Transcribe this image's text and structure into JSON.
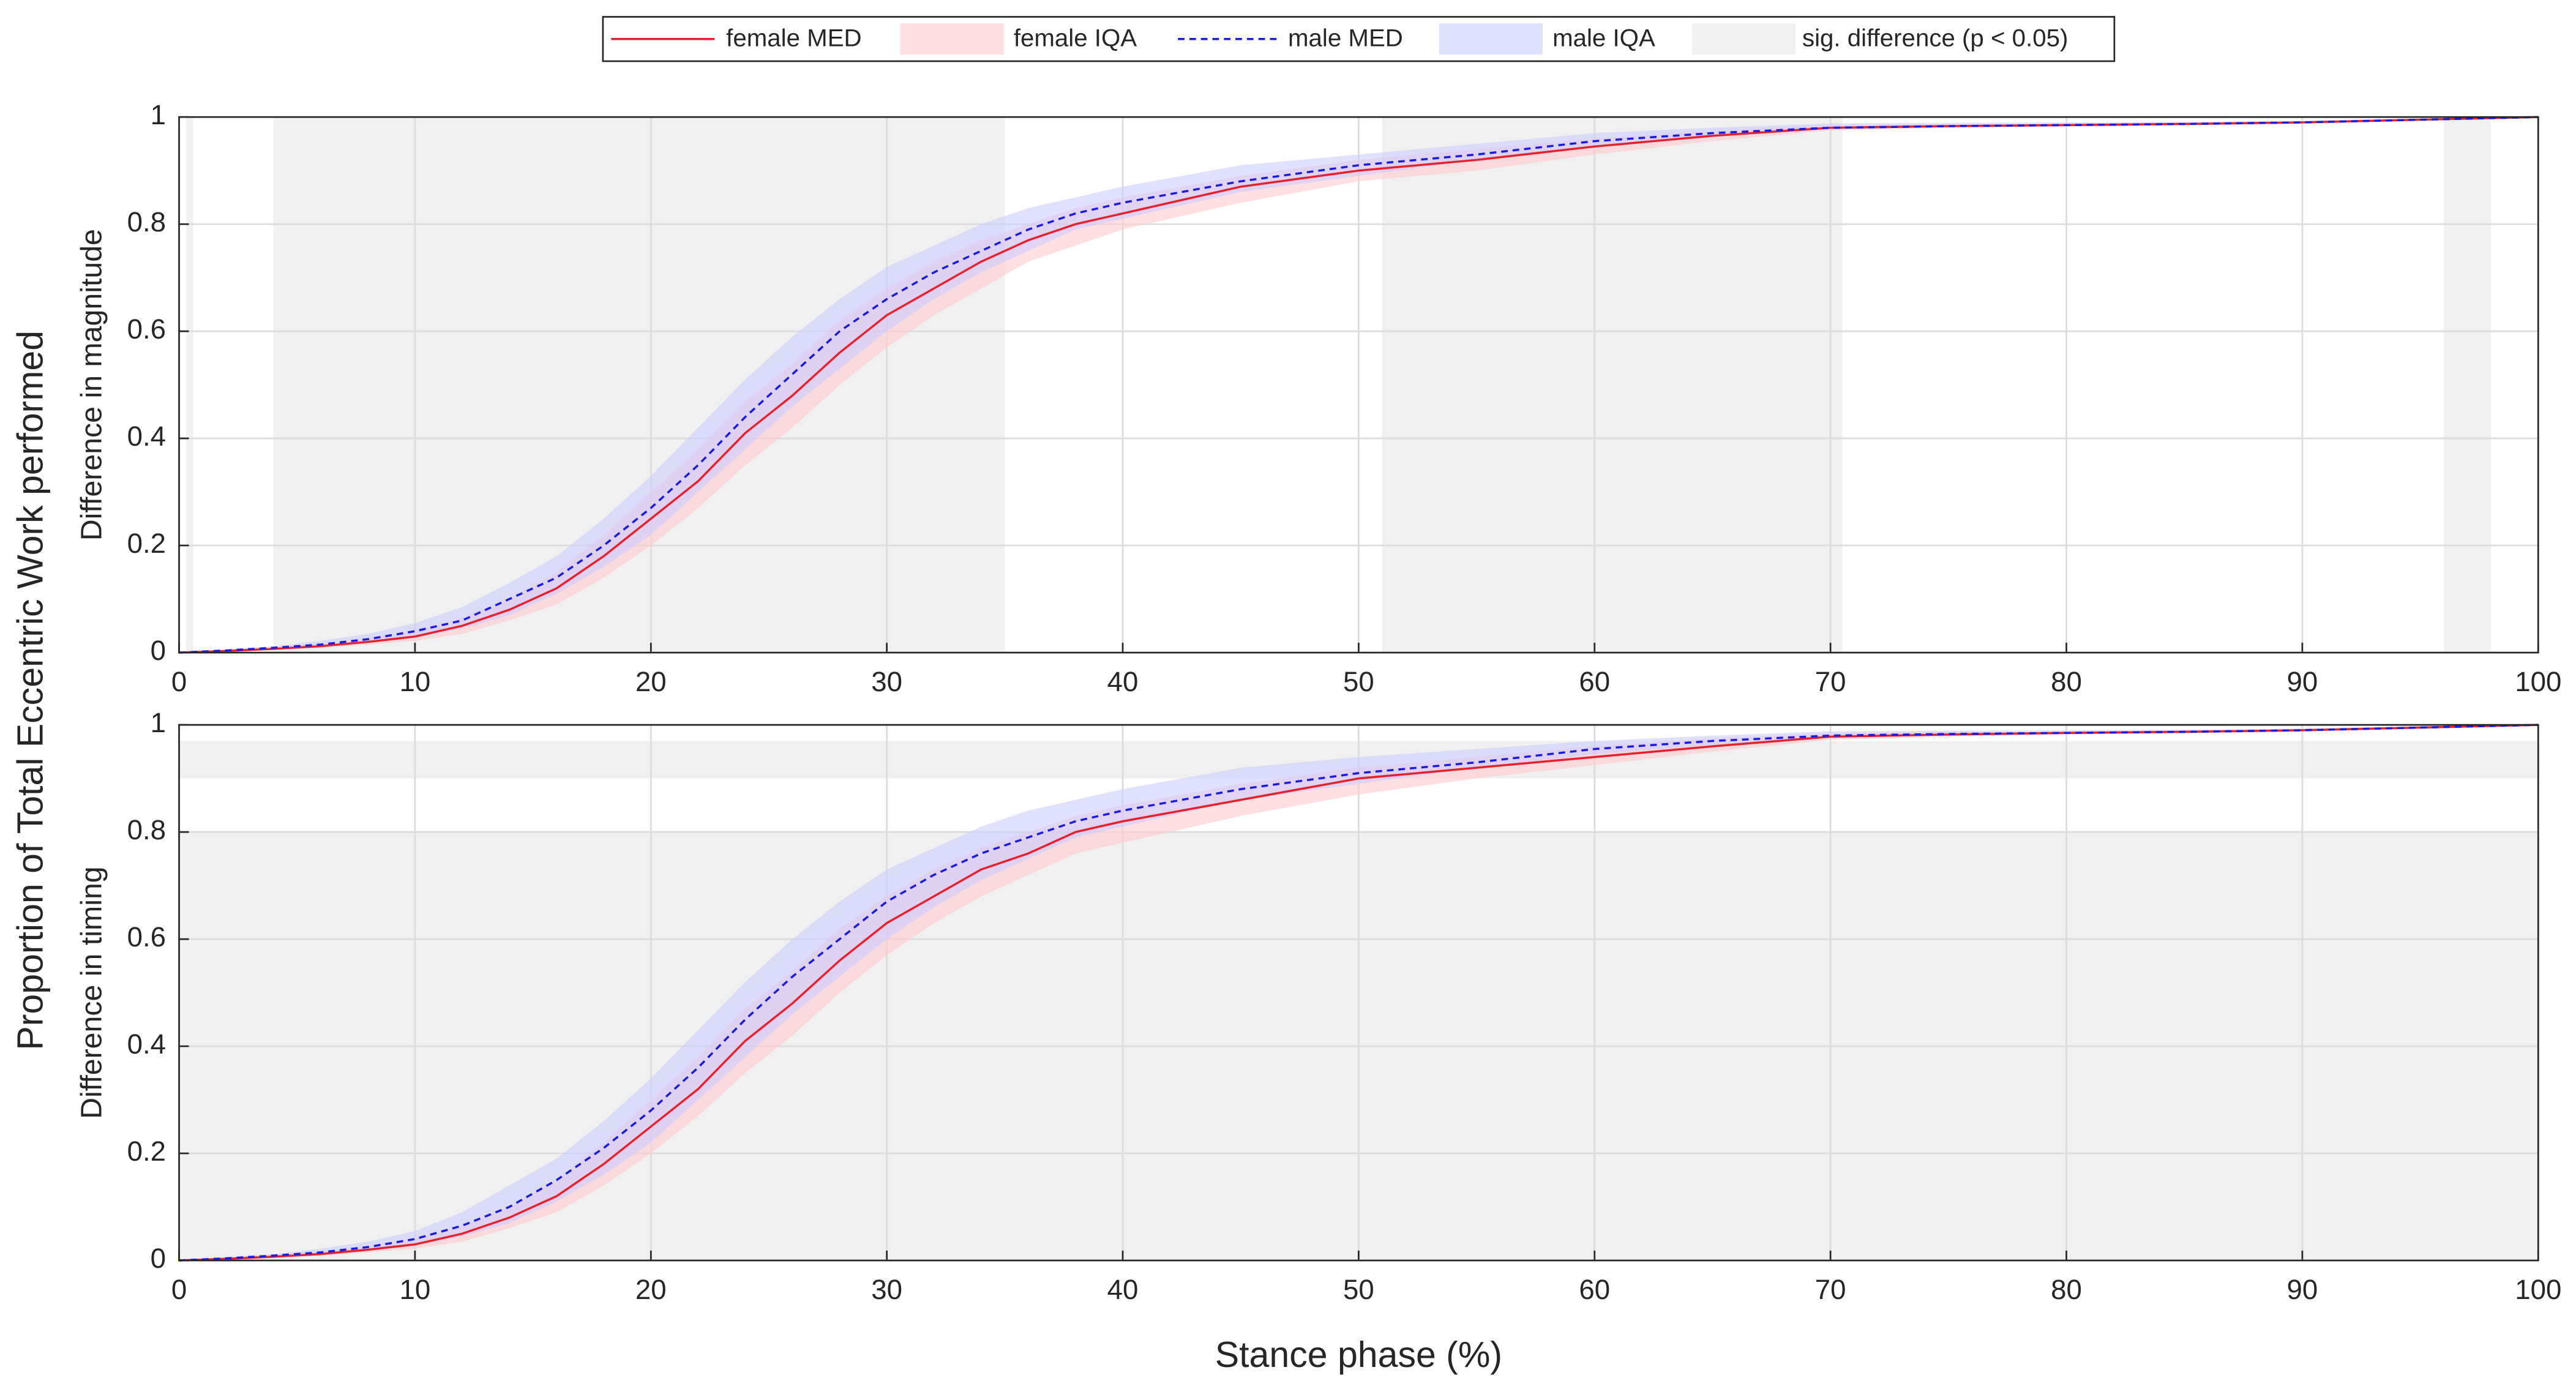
{
  "xlabel": "Stance phase (%)",
  "ylabel": "Proportion of Total Eccentric Work performed",
  "chart_data": [
    {
      "type": "line",
      "ylabel": "Difference in magnitude",
      "x": [
        0,
        2,
        4,
        6,
        8,
        10,
        12,
        14,
        16,
        18,
        20,
        22,
        24,
        26,
        28,
        30,
        32,
        34,
        36,
        38,
        40,
        45,
        50,
        55,
        60,
        65,
        70,
        75,
        80,
        85,
        90,
        95,
        100
      ],
      "series": [
        {
          "name": "female MED",
          "kind": "line",
          "color": "#e8202a",
          "dash": false,
          "values": [
            0,
            0.003,
            0.007,
            0.012,
            0.02,
            0.03,
            0.05,
            0.08,
            0.12,
            0.18,
            0.25,
            0.32,
            0.41,
            0.48,
            0.56,
            0.63,
            0.68,
            0.73,
            0.77,
            0.8,
            0.82,
            0.87,
            0.9,
            0.92,
            0.945,
            0.965,
            0.98,
            0.983,
            0.985,
            0.987,
            0.99,
            0.995,
            1
          ]
        },
        {
          "name": "female IQA",
          "kind": "band",
          "color": "#ffc9cf",
          "lower": [
            0,
            0.002,
            0.005,
            0.009,
            0.015,
            0.022,
            0.035,
            0.06,
            0.09,
            0.14,
            0.2,
            0.27,
            0.35,
            0.42,
            0.5,
            0.57,
            0.63,
            0.68,
            0.73,
            0.76,
            0.79,
            0.84,
            0.88,
            0.9,
            0.93,
            0.955,
            0.975,
            0.98,
            0.982,
            0.985,
            0.988,
            0.994,
            1
          ],
          "upper": [
            0,
            0.004,
            0.009,
            0.016,
            0.026,
            0.04,
            0.065,
            0.1,
            0.15,
            0.22,
            0.3,
            0.38,
            0.47,
            0.54,
            0.62,
            0.68,
            0.73,
            0.77,
            0.8,
            0.83,
            0.85,
            0.89,
            0.92,
            0.94,
            0.96,
            0.975,
            0.985,
            0.987,
            0.988,
            0.99,
            0.992,
            0.996,
            1
          ]
        },
        {
          "name": "male MED",
          "kind": "line",
          "color": "#1a1ae6",
          "dash": true,
          "values": [
            0,
            0.004,
            0.009,
            0.015,
            0.025,
            0.04,
            0.06,
            0.1,
            0.14,
            0.2,
            0.27,
            0.35,
            0.44,
            0.52,
            0.6,
            0.66,
            0.71,
            0.75,
            0.79,
            0.82,
            0.84,
            0.88,
            0.91,
            0.93,
            0.955,
            0.97,
            0.98,
            0.983,
            0.985,
            0.987,
            0.99,
            0.995,
            1
          ]
        },
        {
          "name": "male IQA",
          "kind": "band",
          "color": "#ccccff",
          "lower": [
            0,
            0.003,
            0.006,
            0.011,
            0.018,
            0.028,
            0.045,
            0.07,
            0.11,
            0.16,
            0.22,
            0.3,
            0.38,
            0.46,
            0.53,
            0.6,
            0.66,
            0.71,
            0.75,
            0.79,
            0.81,
            0.86,
            0.89,
            0.92,
            0.945,
            0.963,
            0.977,
            0.981,
            0.983,
            0.986,
            0.989,
            0.995,
            1
          ],
          "upper": [
            0,
            0.006,
            0.012,
            0.022,
            0.035,
            0.055,
            0.085,
            0.13,
            0.18,
            0.25,
            0.33,
            0.42,
            0.51,
            0.59,
            0.66,
            0.72,
            0.76,
            0.8,
            0.83,
            0.85,
            0.87,
            0.91,
            0.93,
            0.95,
            0.97,
            0.98,
            0.988,
            0.989,
            0.99,
            0.991,
            0.993,
            0.997,
            1
          ]
        }
      ],
      "sig_label": "sig. difference (p < 0.05)",
      "sig_color": "#f0f0f0",
      "sig_regions": [
        {
          "x": [
            0.3,
            0.6
          ],
          "y": [
            0,
            1
          ]
        },
        {
          "x": [
            4,
            35
          ],
          "y": [
            0,
            1
          ]
        },
        {
          "x": [
            51,
            70.5
          ],
          "y": [
            0,
            1
          ]
        },
        {
          "x": [
            96,
            98
          ],
          "y": [
            0,
            1
          ]
        }
      ],
      "xlim": [
        0,
        100
      ],
      "ylim": [
        0,
        1
      ],
      "xticks": [
        0,
        10,
        20,
        30,
        40,
        50,
        60,
        70,
        80,
        90,
        100
      ],
      "yticks": [
        0,
        0.2,
        0.4,
        0.6,
        0.8,
        1
      ],
      "grid": true
    },
    {
      "type": "line",
      "ylabel": "Difference in timing",
      "x": [
        0,
        2,
        4,
        6,
        8,
        10,
        12,
        14,
        16,
        18,
        20,
        22,
        24,
        26,
        28,
        30,
        32,
        34,
        36,
        38,
        40,
        45,
        50,
        55,
        60,
        65,
        70,
        75,
        80,
        85,
        90,
        95,
        100
      ],
      "series": [
        {
          "kind": "line",
          "color": "#e8202a",
          "dash": false,
          "values": [
            0,
            0.003,
            0.007,
            0.012,
            0.02,
            0.03,
            0.05,
            0.08,
            0.12,
            0.18,
            0.25,
            0.32,
            0.41,
            0.48,
            0.56,
            0.63,
            0.68,
            0.73,
            0.76,
            0.8,
            0.82,
            0.86,
            0.9,
            0.92,
            0.94,
            0.96,
            0.978,
            0.982,
            0.985,
            0.987,
            0.99,
            0.995,
            1
          ]
        },
        {
          "kind": "band",
          "color": "#ffc9cf",
          "lower": [
            0,
            0.002,
            0.005,
            0.009,
            0.015,
            0.022,
            0.035,
            0.06,
            0.09,
            0.14,
            0.2,
            0.27,
            0.35,
            0.42,
            0.5,
            0.57,
            0.63,
            0.68,
            0.72,
            0.76,
            0.78,
            0.83,
            0.87,
            0.9,
            0.925,
            0.95,
            0.972,
            0.978,
            0.982,
            0.985,
            0.988,
            0.994,
            1
          ],
          "upper": [
            0,
            0.004,
            0.009,
            0.016,
            0.026,
            0.04,
            0.065,
            0.1,
            0.15,
            0.22,
            0.3,
            0.38,
            0.47,
            0.54,
            0.62,
            0.68,
            0.73,
            0.77,
            0.8,
            0.83,
            0.85,
            0.89,
            0.92,
            0.94,
            0.96,
            0.975,
            0.985,
            0.987,
            0.988,
            0.99,
            0.992,
            0.996,
            1
          ]
        },
        {
          "kind": "line",
          "color": "#1a1ae6",
          "dash": true,
          "values": [
            0,
            0.004,
            0.009,
            0.015,
            0.025,
            0.04,
            0.065,
            0.1,
            0.15,
            0.21,
            0.28,
            0.36,
            0.45,
            0.53,
            0.6,
            0.67,
            0.72,
            0.76,
            0.79,
            0.82,
            0.84,
            0.88,
            0.91,
            0.93,
            0.955,
            0.97,
            0.98,
            0.983,
            0.985,
            0.987,
            0.99,
            0.995,
            1
          ]
        },
        {
          "kind": "band",
          "color": "#ccccff",
          "lower": [
            0,
            0.003,
            0.006,
            0.011,
            0.018,
            0.028,
            0.045,
            0.07,
            0.11,
            0.16,
            0.22,
            0.3,
            0.38,
            0.46,
            0.53,
            0.6,
            0.66,
            0.71,
            0.75,
            0.79,
            0.81,
            0.86,
            0.89,
            0.92,
            0.945,
            0.963,
            0.977,
            0.981,
            0.983,
            0.986,
            0.989,
            0.995,
            1
          ],
          "upper": [
            0,
            0.006,
            0.012,
            0.022,
            0.035,
            0.055,
            0.09,
            0.14,
            0.19,
            0.26,
            0.34,
            0.43,
            0.52,
            0.6,
            0.67,
            0.73,
            0.77,
            0.81,
            0.84,
            0.86,
            0.88,
            0.92,
            0.94,
            0.955,
            0.97,
            0.98,
            0.988,
            0.989,
            0.99,
            0.991,
            0.993,
            0.997,
            1
          ]
        }
      ],
      "sig_color": "#f0f0f0",
      "sig_regions": [
        {
          "x": [
            0,
            100
          ],
          "y": [
            0,
            0.8
          ]
        },
        {
          "x": [
            0,
            100
          ],
          "y": [
            0.9,
            0.97
          ]
        }
      ],
      "xlim": [
        0,
        100
      ],
      "ylim": [
        0,
        1
      ],
      "xticks": [
        0,
        10,
        20,
        30,
        40,
        50,
        60,
        70,
        80,
        90,
        100
      ],
      "yticks": [
        0,
        0.2,
        0.4,
        0.6,
        0.8,
        1
      ],
      "grid": true
    }
  ]
}
